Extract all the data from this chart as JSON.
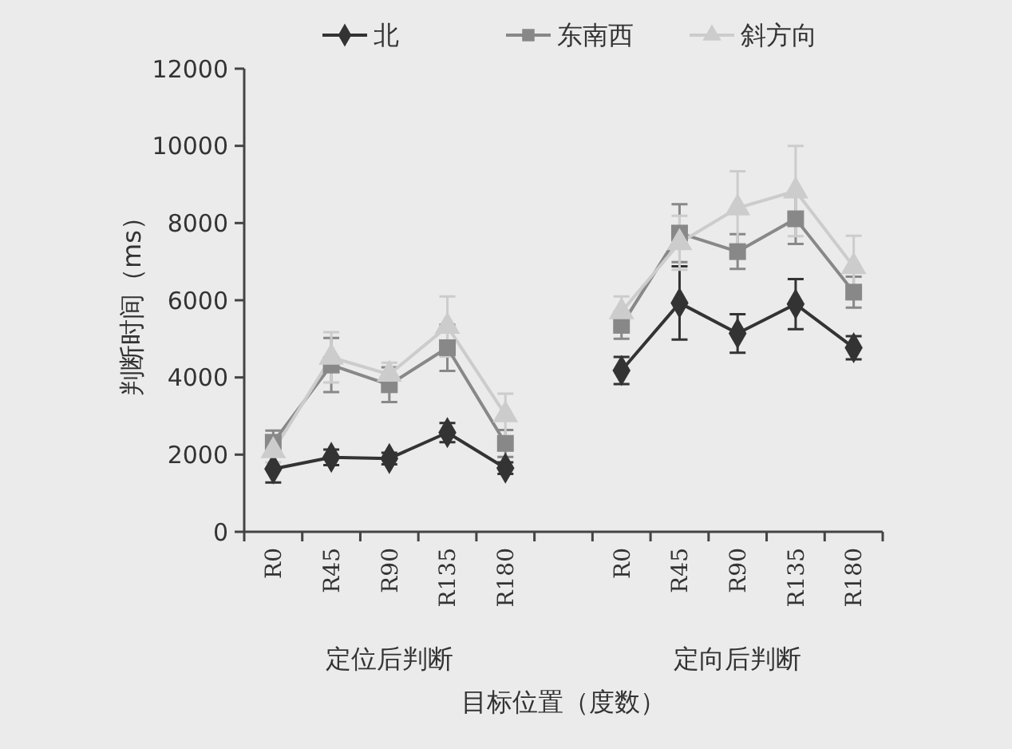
{
  "chart_data": {
    "type": "line",
    "ylabel": "判断时间（ms）",
    "xlabel": "目标位置（度数）",
    "categories": [
      "R0",
      "R45",
      "R90",
      "R135",
      "R180",
      null,
      "R0",
      "R45",
      "R90",
      "R135",
      "R180"
    ],
    "ylim": [
      0,
      12000
    ],
    "yticks": [
      0,
      2000,
      4000,
      6000,
      8000,
      10000,
      12000
    ],
    "grid": false,
    "legend": "top",
    "series": [
      {
        "name": "北",
        "color": "#333333",
        "marker": "diamond",
        "values": [
          1630,
          1930,
          1900,
          2570,
          1650,
          null,
          4180,
          5930,
          5140,
          5900,
          4770
        ],
        "errors": [
          350,
          200,
          150,
          250,
          150,
          null,
          350,
          950,
          500,
          650,
          300
        ]
      },
      {
        "name": "东南西",
        "color": "#888888",
        "marker": "square",
        "values": [
          2320,
          4320,
          3810,
          4770,
          2290,
          null,
          5350,
          7740,
          7260,
          8110,
          6210
        ],
        "errors": [
          300,
          700,
          450,
          600,
          350,
          null,
          350,
          750,
          450,
          650,
          400
        ]
      },
      {
        "name": "斜方向",
        "color": "#cccccc",
        "marker": "triangle",
        "values": [
          2100,
          4520,
          4080,
          5320,
          3030,
          null,
          5700,
          7490,
          8390,
          8830,
          6870
        ],
        "errors": [
          300,
          650,
          300,
          780,
          550,
          null,
          400,
          700,
          950,
          1170,
          800
        ]
      }
    ],
    "annotations": [
      "定位后判断",
      "定向后判断"
    ]
  }
}
